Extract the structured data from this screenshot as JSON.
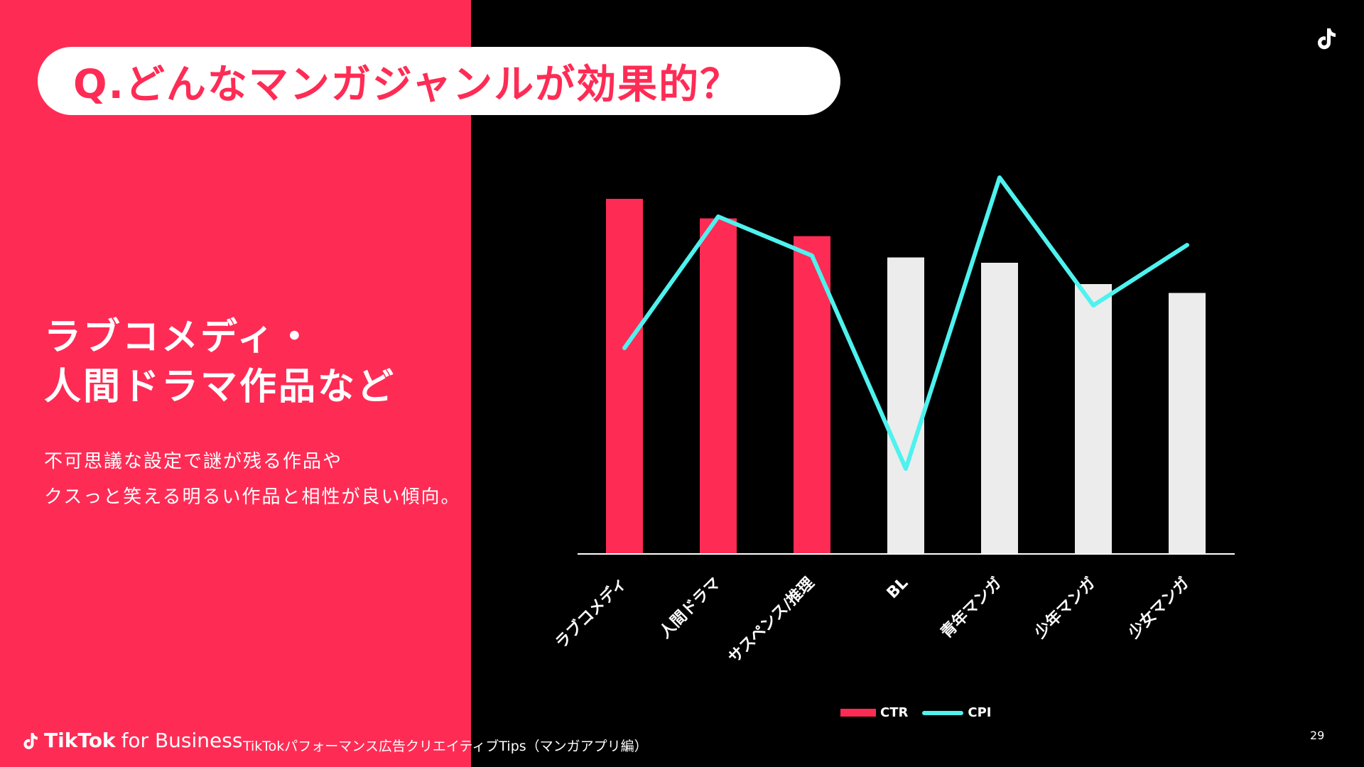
{
  "title": "Q.どんなマンガジャンルが効果的？",
  "headline": {
    "line1": "ラブコメディ・",
    "line2": "人間ドラマ作品など"
  },
  "body": {
    "line1": "不可思議な設定で謎が残る作品や",
    "line2": "クスっと笑える明るい作品と相性が良い傾向。"
  },
  "footer": {
    "brand": "TikTok",
    "brand_suffix": "for Business",
    "note": "TikTokパフォーマンス広告クリエイティブTips（マンガアプリ編）",
    "page_number": "29"
  },
  "colors": {
    "accent": "#fe2c55",
    "highlight_bar": "#fe2c55",
    "other_bar": "#ececec",
    "line": "#4ef2ee",
    "background": "#000000"
  },
  "chart_data": {
    "type": "bar",
    "categories": [
      "ラブコメディ",
      "人間ドラマ",
      "サスペンス/推理",
      "BL",
      "青年マンガ",
      "少年マンガ",
      "少女マンガ"
    ],
    "series": [
      {
        "name": "CTR",
        "type": "bar",
        "values": [
          100,
          94.5,
          89.5,
          83.5,
          82,
          76,
          73.5
        ],
        "highlighted": [
          true,
          true,
          true,
          false,
          false,
          false,
          false
        ]
      },
      {
        "name": "CPI",
        "type": "line",
        "values": [
          58,
          95,
          84,
          24,
          106,
          70,
          87
        ]
      }
    ],
    "ylim": [
      0,
      110
    ],
    "legend": "bottom-center",
    "grid": false
  }
}
